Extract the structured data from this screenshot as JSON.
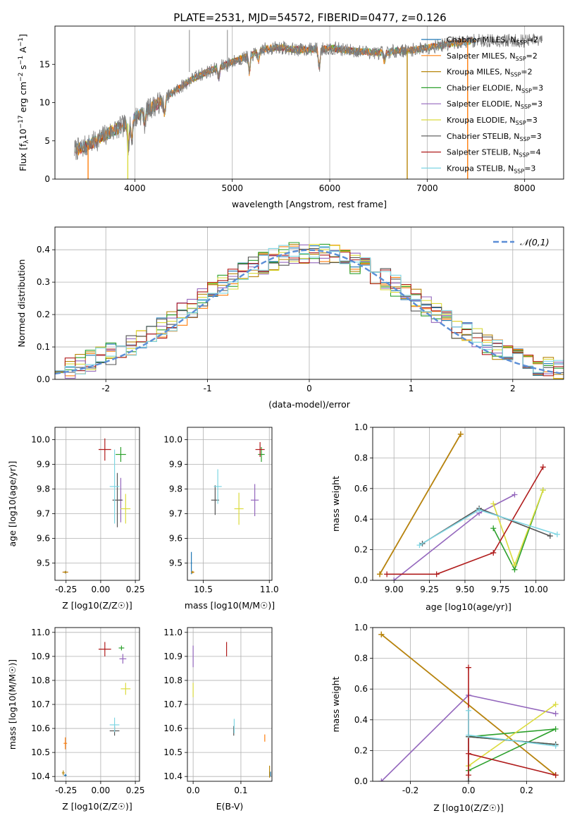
{
  "figure_title": "PLATE=2531, MJD=54572, FIBERID=0477, z=0.126",
  "colors": {
    "Chabrier MILES": "#1f77b4",
    "Salpeter MILES": "#ff7f0e",
    "Kroupa MILES": "#b8860b",
    "Chabrier ELODIE": "#2ca02c",
    "Salpeter ELODIE": "#9467bd",
    "Kroupa ELODIE": "#dbdb3d",
    "Chabrier STELIB": "#555555",
    "Salpeter STELIB": "#b01c1c",
    "Kroupa STELIB": "#7fd6e3",
    "gaussian": "#5b8ed6"
  },
  "chart_data": [
    {
      "id": "spectrum",
      "type": "line",
      "title": "PLATE=2531, MJD=54572, FIBERID=0477, z=0.126",
      "xlabel": "wavelength [Angstrom, rest frame]",
      "ylabel": "Flux [f_λ 10^-17 erg cm^-2 s^-1 A^-1]",
      "xlim": [
        3180,
        8400
      ],
      "ylim": [
        0,
        20
      ],
      "xticks": [
        4000,
        5000,
        6000,
        7000,
        8000
      ],
      "yticks": [
        0,
        5,
        10,
        15
      ],
      "grid": "x-only",
      "legend": "upper right",
      "legend_entries": [
        "Chabrier MILES, N_SSP=2",
        "Salpeter MILES, N_SSP=2",
        "Kroupa MILES, N_SSP=2",
        "Chabrier ELODIE, N_SSP=3",
        "Salpeter ELODIE, N_SSP=3",
        "Kroupa ELODIE, N_SSP=3",
        "Chabrier STELIB, N_SSP=3",
        "Salpeter STELIB, N_SSP=4",
        "Kroupa STELIB, N_SSP=3"
      ],
      "continuum": [
        [
          3380,
          3.8
        ],
        [
          3500,
          4.3
        ],
        [
          3600,
          5.0
        ],
        [
          3700,
          5.8
        ],
        [
          3800,
          6.5
        ],
        [
          3900,
          7.0
        ],
        [
          4000,
          8.0
        ],
        [
          4100,
          8.8
        ],
        [
          4200,
          9.6
        ],
        [
          4300,
          10.4
        ],
        [
          4400,
          11.4
        ],
        [
          4500,
          12.3
        ],
        [
          4600,
          13.2
        ],
        [
          4700,
          13.8
        ],
        [
          4800,
          14.3
        ],
        [
          4900,
          14.8
        ],
        [
          5000,
          15.3
        ],
        [
          5100,
          15.8
        ],
        [
          5200,
          16.2
        ],
        [
          5300,
          16.9
        ],
        [
          5400,
          17.1
        ],
        [
          5500,
          17.2
        ],
        [
          5600,
          17.0
        ],
        [
          5700,
          16.9
        ],
        [
          5800,
          17.0
        ],
        [
          5900,
          17.0
        ],
        [
          6000,
          17.1
        ],
        [
          6100,
          17.0
        ],
        [
          6200,
          16.8
        ],
        [
          6300,
          16.7
        ],
        [
          6400,
          16.6
        ],
        [
          6500,
          16.5
        ],
        [
          6600,
          16.6
        ],
        [
          6700,
          16.8
        ],
        [
          6800,
          16.8
        ],
        [
          6900,
          17.0
        ],
        [
          7000,
          17.2
        ],
        [
          7100,
          17.4
        ],
        [
          7200,
          17.6
        ],
        [
          7300,
          17.8
        ],
        [
          7400,
          18.0
        ],
        [
          7500,
          18.1
        ]
      ],
      "features": [
        {
          "w": 3934,
          "depth": 3.2
        },
        {
          "w": 3968,
          "depth": 3.0
        },
        {
          "w": 4102,
          "depth": 1.5
        },
        {
          "w": 4305,
          "depth": 2.0
        },
        {
          "w": 4861,
          "depth": 1.5
        },
        {
          "w": 5175,
          "depth": 2.2
        },
        {
          "w": 5270,
          "depth": 1.2
        },
        {
          "w": 5892,
          "depth": 2.5
        },
        {
          "w": 6563,
          "depth": 1.3
        }
      ],
      "spikes": [
        [
          4560,
          19.5
        ],
        [
          4950,
          19.5
        ]
      ],
      "model_dropouts": [
        [
          3500,
          3540
        ],
        [
          3920,
          3935
        ],
        [
          6790,
          6800
        ],
        [
          7410,
          7420
        ]
      ],
      "tail_end": 8180
    },
    {
      "id": "residuals",
      "type": "area",
      "xlabel": "(data-model)/error",
      "ylabel": "Normed distribution",
      "xlim": [
        -2.5,
        2.5
      ],
      "ylim": [
        0,
        0.47
      ],
      "xticks": [
        -2,
        -1,
        0,
        1,
        2
      ],
      "yticks": [
        0.0,
        0.1,
        0.2,
        0.3,
        0.4
      ],
      "grid": true,
      "legend": "upper right",
      "bin_width": 0.1,
      "series": [
        {
          "name": "𝒩(0,1)",
          "type": "gaussian",
          "mean": 0,
          "sigma": 1
        }
      ]
    },
    {
      "id": "age_vs_Z",
      "type": "scatter",
      "xlabel": "Z [log10(Z/Z☉)]",
      "ylabel": "age [log10(age/yr)]",
      "xlim": [
        -0.33,
        0.28
      ],
      "ylim": [
        9.43,
        10.05
      ],
      "xticks": [
        -0.25,
        0.0,
        0.25
      ],
      "yticks": [
        9.5,
        9.6,
        9.7,
        9.8,
        9.9,
        10.0
      ],
      "grid": true,
      "points": [
        {
          "model": "Chabrier MILES",
          "x": -0.255,
          "y": 9.463,
          "dx": 0.04,
          "dy": 0.01
        },
        {
          "model": "Salpeter MILES",
          "x": -0.255,
          "y": 9.463,
          "dx": 0.04,
          "dy": 0.005
        },
        {
          "model": "Kroupa MILES",
          "x": -0.255,
          "y": 9.463,
          "dx": 0.03,
          "dy": 0.01
        },
        {
          "model": "Chabrier ELODIE",
          "x": 0.145,
          "y": 9.94,
          "dx": 0.075,
          "dy": 0.06
        },
        {
          "model": "Salpeter ELODIE",
          "x": 0.145,
          "y": 9.755,
          "dx": 0.03,
          "dy": 0.18
        },
        {
          "model": "Kroupa ELODIE",
          "x": 0.18,
          "y": 9.72,
          "dx": 0.07,
          "dy": 0.12
        },
        {
          "model": "Chabrier STELIB",
          "x": 0.12,
          "y": 9.755,
          "dx": 0.07,
          "dy": 0.22
        },
        {
          "model": "Salpeter STELIB",
          "x": 0.03,
          "y": 9.96,
          "dx": 0.09,
          "dy": 0.09
        },
        {
          "model": "Kroupa STELIB",
          "x": 0.1,
          "y": 9.81,
          "dx": 0.07,
          "dy": 0.3
        }
      ]
    },
    {
      "id": "age_vs_mass",
      "type": "scatter",
      "xlabel": "mass [log10(M/M☉)]",
      "ylabel": "",
      "xlim": [
        10.38,
        11.02
      ],
      "ylim": [
        9.43,
        10.05
      ],
      "xticks": [
        10.5,
        11.0
      ],
      "yticks": [
        9.5,
        9.6,
        9.7,
        9.8,
        9.9,
        10.0
      ],
      "grid": true,
      "points": [
        {
          "model": "Chabrier MILES",
          "x": 10.41,
          "y": 9.5,
          "dx": 0.01,
          "dy": 0.09
        },
        {
          "model": "Salpeter MILES",
          "x": 10.42,
          "y": 9.463,
          "dx": 0.025,
          "dy": 0.01
        },
        {
          "model": "Kroupa MILES",
          "x": 10.42,
          "y": 9.463,
          "dx": 0.02,
          "dy": 0.01
        },
        {
          "model": "Chabrier ELODIE",
          "x": 10.94,
          "y": 9.94,
          "dx": 0.05,
          "dy": 0.06
        },
        {
          "model": "Salpeter ELODIE",
          "x": 10.89,
          "y": 9.755,
          "dx": 0.06,
          "dy": 0.13
        },
        {
          "model": "Kroupa ELODIE",
          "x": 10.77,
          "y": 9.72,
          "dx": 0.07,
          "dy": 0.13
        },
        {
          "model": "Chabrier STELIB",
          "x": 10.59,
          "y": 9.755,
          "dx": 0.06,
          "dy": 0.12
        },
        {
          "model": "Salpeter STELIB",
          "x": 10.93,
          "y": 9.96,
          "dx": 0.07,
          "dy": 0.06
        },
        {
          "model": "Kroupa STELIB",
          "x": 10.61,
          "y": 9.81,
          "dx": 0.06,
          "dy": 0.14
        }
      ]
    },
    {
      "id": "weight_vs_age",
      "type": "line",
      "xlabel": "age [log10(age/yr)]",
      "ylabel": "mass weight",
      "xlim": [
        8.85,
        10.2
      ],
      "ylim": [
        0,
        1.0
      ],
      "xticks": [
        9.0,
        9.25,
        9.5,
        9.75,
        10.0
      ],
      "yticks": [
        0.0,
        0.2,
        0.4,
        0.6,
        0.8,
        1.0
      ],
      "grid": true,
      "series": [
        {
          "name": "Chabrier MILES",
          "points": [
            [
              8.9,
              0.04
            ],
            [
              9.47,
              0.955
            ]
          ]
        },
        {
          "name": "Salpeter MILES",
          "points": [
            [
              8.9,
              0.04
            ],
            [
              9.47,
              0.955
            ]
          ]
        },
        {
          "name": "Kroupa MILES",
          "points": [
            [
              8.9,
              0.04
            ],
            [
              9.47,
              0.955
            ]
          ]
        },
        {
          "name": "Chabrier ELODIE",
          "points": [
            [
              9.7,
              0.34
            ],
            [
              9.85,
              0.07
            ],
            [
              10.05,
              0.59
            ]
          ]
        },
        {
          "name": "Salpeter ELODIE",
          "points": [
            [
              9.0,
              0.0
            ],
            [
              9.6,
              0.44
            ],
            [
              9.85,
              0.56
            ]
          ]
        },
        {
          "name": "Kroupa ELODIE",
          "points": [
            [
              9.7,
              0.5
            ],
            [
              9.85,
              0.1
            ],
            [
              10.05,
              0.59
            ]
          ]
        },
        {
          "name": "Chabrier STELIB",
          "points": [
            [
              9.2,
              0.24
            ],
            [
              9.6,
              0.47
            ],
            [
              10.1,
              0.29
            ]
          ]
        },
        {
          "name": "Salpeter STELIB",
          "points": [
            [
              8.95,
              0.04
            ],
            [
              9.3,
              0.04
            ],
            [
              9.7,
              0.18
            ],
            [
              10.05,
              0.74
            ]
          ]
        },
        {
          "name": "Kroupa STELIB",
          "points": [
            [
              9.18,
              0.23
            ],
            [
              9.6,
              0.46
            ],
            [
              10.15,
              0.3
            ]
          ]
        }
      ]
    },
    {
      "id": "mass_vs_Z",
      "type": "scatter",
      "xlabel": "Z [log10(Z/Z☉)]",
      "ylabel": "mass [log10(M/M☉)]",
      "xlim": [
        -0.33,
        0.28
      ],
      "ylim": [
        10.38,
        11.02
      ],
      "xticks": [
        -0.25,
        0.0,
        0.25
      ],
      "yticks": [
        10.4,
        10.5,
        10.6,
        10.7,
        10.8,
        10.9,
        11.0
      ],
      "grid": true,
      "points": [
        {
          "model": "Chabrier MILES",
          "x": -0.255,
          "y": 10.405,
          "dx": 0.02,
          "dy": 0.01
        },
        {
          "model": "Salpeter MILES",
          "x": -0.255,
          "y": 10.538,
          "dx": 0.025,
          "dy": 0.05
        },
        {
          "model": "Kroupa MILES",
          "x": -0.27,
          "y": 10.415,
          "dx": 0.02,
          "dy": 0.02
        },
        {
          "model": "Chabrier ELODIE",
          "x": 0.15,
          "y": 10.935,
          "dx": 0.04,
          "dy": 0.02
        },
        {
          "model": "Salpeter ELODIE",
          "x": 0.16,
          "y": 10.89,
          "dx": 0.05,
          "dy": 0.04
        },
        {
          "model": "Kroupa ELODIE",
          "x": 0.18,
          "y": 10.765,
          "dx": 0.07,
          "dy": 0.05
        },
        {
          "model": "Chabrier STELIB",
          "x": 0.1,
          "y": 10.59,
          "dx": 0.07,
          "dy": 0.04
        },
        {
          "model": "Salpeter STELIB",
          "x": 0.03,
          "y": 10.93,
          "dx": 0.09,
          "dy": 0.06
        },
        {
          "model": "Kroupa STELIB",
          "x": 0.1,
          "y": 10.615,
          "dx": 0.07,
          "dy": 0.06
        }
      ]
    },
    {
      "id": "mass_vs_ebv",
      "type": "scatter",
      "xlabel": "E(B-V)",
      "ylabel": "",
      "xlim": [
        -0.012,
        0.165
      ],
      "ylim": [
        10.38,
        11.02
      ],
      "xticks": [
        0.0,
        0.1
      ],
      "yticks": [
        10.4,
        10.5,
        10.6,
        10.7,
        10.8,
        10.9,
        11.0
      ],
      "grid": true,
      "points": [
        {
          "model": "Salpeter ELODIE",
          "x": 0.0,
          "y": 10.9,
          "dx": 0.0,
          "dy": 0.09
        },
        {
          "model": "Kroupa ELODIE",
          "x": 0.0,
          "y": 10.76,
          "dx": 0.0,
          "dy": 0.06
        },
        {
          "model": "Salpeter STELIB",
          "x": 0.07,
          "y": 10.93,
          "dx": 0.0,
          "dy": 0.06
        },
        {
          "model": "Chabrier STELIB",
          "x": 0.085,
          "y": 10.59,
          "dx": 0.0,
          "dy": 0.04
        },
        {
          "model": "Kroupa STELIB",
          "x": 0.086,
          "y": 10.61,
          "dx": 0.0,
          "dy": 0.06
        },
        {
          "model": "Salpeter MILES",
          "x": 0.15,
          "y": 10.56,
          "dx": 0.0,
          "dy": 0.03
        },
        {
          "model": "Kroupa MILES",
          "x": 0.16,
          "y": 10.42,
          "dx": 0.0,
          "dy": 0.05
        },
        {
          "model": "Chabrier MILES",
          "x": 0.162,
          "y": 10.41,
          "dx": 0.0,
          "dy": 0.02
        }
      ]
    },
    {
      "id": "weight_vs_Z",
      "type": "line",
      "xlabel": "Z [log10(Z/Z☉)]",
      "ylabel": "mass weight",
      "xlim": [
        -0.33,
        0.33
      ],
      "ylim": [
        0,
        1.0
      ],
      "xticks": [
        -0.2,
        0.0,
        0.2
      ],
      "yticks": [
        0.0,
        0.2,
        0.4,
        0.6,
        0.8,
        1.0
      ],
      "grid": true,
      "series": [
        {
          "name": "Chabrier MILES",
          "points": [
            [
              -0.3,
              0.955
            ],
            [
              0.3,
              0.04
            ]
          ]
        },
        {
          "name": "Salpeter MILES",
          "points": [
            [
              -0.3,
              0.955
            ],
            [
              0.3,
              0.04
            ]
          ]
        },
        {
          "name": "Kroupa MILES",
          "points": [
            [
              -0.3,
              0.955
            ],
            [
              0.3,
              0.04
            ]
          ]
        },
        {
          "name": "Chabrier ELODIE",
          "points": [
            [
              0.0,
              0.07
            ],
            [
              0.3,
              0.34
            ],
            [
              0.0,
              0.29
            ],
            [
              0.3,
              0.24
            ]
          ]
        },
        {
          "name": "Salpeter ELODIE",
          "points": [
            [
              -0.3,
              0.0
            ],
            [
              0.0,
              0.56
            ],
            [
              0.3,
              0.44
            ]
          ]
        },
        {
          "name": "Kroupa ELODIE",
          "points": [
            [
              0.0,
              0.1
            ],
            [
              0.3,
              0.5
            ]
          ]
        },
        {
          "name": "Chabrier STELIB",
          "points": [
            [
              0.0,
              0.0
            ],
            [
              0.0,
              0.29
            ],
            [
              0.3,
              0.24
            ]
          ]
        },
        {
          "name": "Salpeter STELIB",
          "points": [
            [
              0.0,
              0.74
            ],
            [
              0.0,
              0.04
            ],
            [
              0.0,
              0.18
            ],
            [
              0.3,
              0.04
            ]
          ]
        },
        {
          "name": "Kroupa STELIB",
          "points": [
            [
              0.0,
              0.46
            ],
            [
              0.0,
              0.3
            ],
            [
              0.3,
              0.23
            ]
          ]
        }
      ]
    }
  ]
}
